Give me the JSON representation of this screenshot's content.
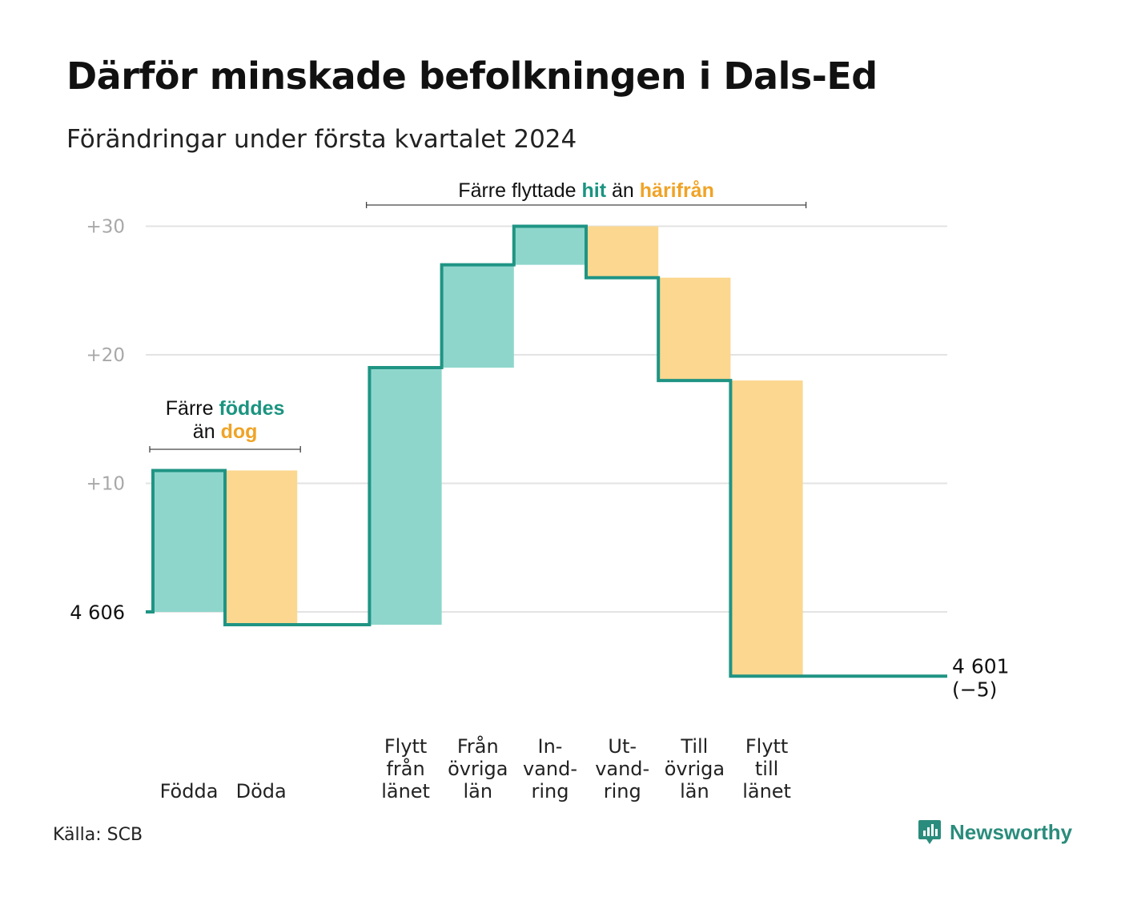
{
  "title": "Därför minskade befolkningen i Dals-Ed",
  "subtitle": "Förändringar under första kvartalet 2024",
  "source": "Källa: SCB",
  "brand": {
    "name": "Newsworthy",
    "icon": "newsworthy-logo-icon"
  },
  "colors": {
    "inflow": "#8ed6cc",
    "outflow": "#fbd78f",
    "line": "#1f9484",
    "teal_text": "#1a9480",
    "orange_text": "#f0a326"
  },
  "chart_data": {
    "type": "waterfall",
    "baseline_value": 4606,
    "baseline_label": "4  606",
    "y_ticks": [
      {
        "value": 30,
        "label": "+30"
      },
      {
        "value": 20,
        "label": "+20"
      },
      {
        "value": 10,
        "label": "+10"
      },
      {
        "value": 0,
        "label": ""
      }
    ],
    "ylim": [
      -5,
      30
    ],
    "steps": [
      {
        "category": "Födda",
        "lines": [
          "",
          "",
          "Födda"
        ],
        "change": 11,
        "kind": "inflow"
      },
      {
        "category": "Döda",
        "lines": [
          "",
          "",
          "Döda"
        ],
        "change": -12,
        "kind": "outflow"
      },
      {
        "category": "",
        "lines": [
          "",
          "",
          ""
        ],
        "change": 0,
        "kind": "gap"
      },
      {
        "category": "Flytt från länet",
        "lines": [
          "Flytt",
          "från",
          "länet"
        ],
        "change": 20,
        "kind": "inflow"
      },
      {
        "category": "Från övriga län",
        "lines": [
          "Från",
          "övriga",
          "län"
        ],
        "change": 8,
        "kind": "inflow"
      },
      {
        "category": "In-vand-ring",
        "lines": [
          "In-",
          "vand-",
          "ring"
        ],
        "change": 3,
        "kind": "inflow"
      },
      {
        "category": "Ut-vand-ring",
        "lines": [
          "Ut-",
          "vand-",
          "ring"
        ],
        "change": -4,
        "kind": "outflow"
      },
      {
        "category": "Till övriga län",
        "lines": [
          "Till",
          "övriga",
          "län"
        ],
        "change": -8,
        "kind": "outflow"
      },
      {
        "category": "Flytt till länet",
        "lines": [
          "Flytt",
          "till",
          "länet"
        ],
        "change": -23,
        "kind": "outflow"
      }
    ],
    "end_label": {
      "value": "4 601",
      "diff": "(−5)"
    },
    "annotations": [
      {
        "name": "natural-change-annotation",
        "from_step": 0,
        "to_step": 1,
        "lines": [
          [
            {
              "text": "Färre ",
              "style": "plain"
            },
            {
              "text": "föddes",
              "style": "teal"
            }
          ],
          [
            {
              "text": "än ",
              "style": "plain"
            },
            {
              "text": "dog",
              "style": "orange"
            }
          ]
        ]
      },
      {
        "name": "migration-annotation",
        "from_step": 3,
        "to_step": 8,
        "lines": [
          [
            {
              "text": "Färre flyttade ",
              "style": "plain"
            },
            {
              "text": "hit",
              "style": "teal"
            },
            {
              "text": " än ",
              "style": "plain"
            },
            {
              "text": "härifrån",
              "style": "orange"
            }
          ]
        ]
      }
    ]
  }
}
